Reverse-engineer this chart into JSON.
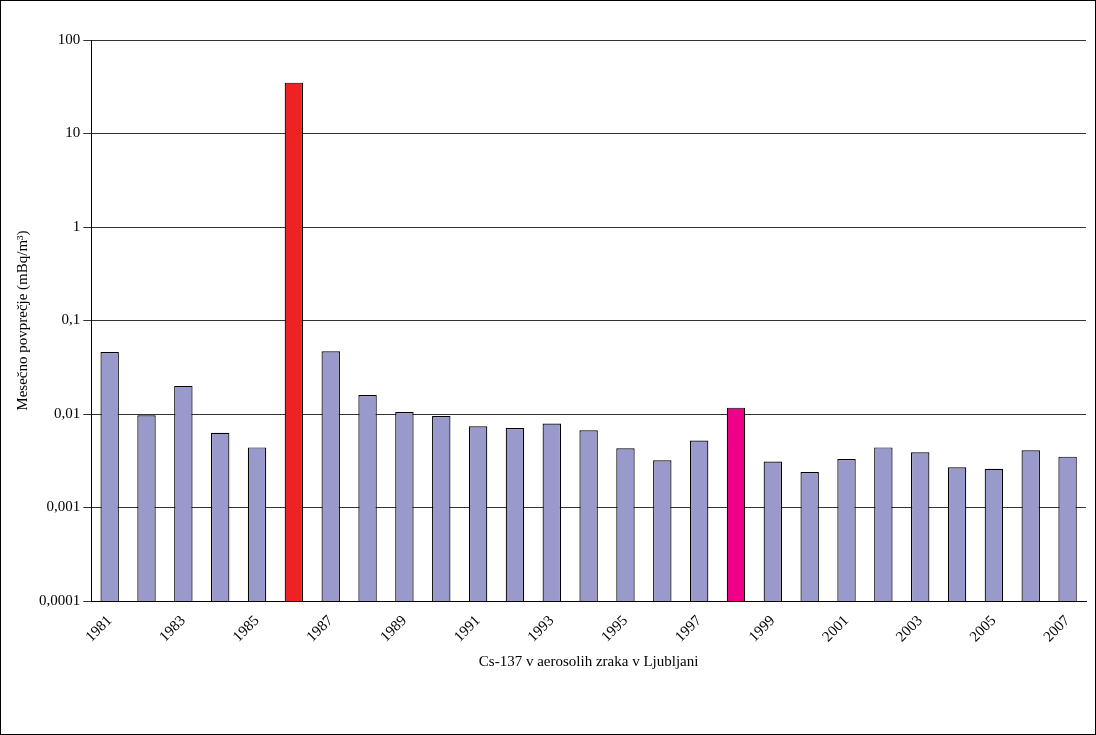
{
  "chart_data": {
    "type": "bar",
    "xlabel": "Cs-137 v aerosolih zraka v Ljubljani",
    "ylabel": "Mesečno povprečje (mBq/m³)",
    "categories": [
      "1981",
      null,
      "1983",
      null,
      "1985",
      null,
      "1987",
      null,
      "1989",
      null,
      "1991",
      null,
      "1993",
      null,
      "1995",
      null,
      "1997",
      null,
      "1999",
      null,
      "2001",
      null,
      "2003",
      null,
      "2005",
      null,
      "2007"
    ],
    "values": [
      0.046,
      0.0097,
      0.02,
      0.0063,
      0.0044,
      35,
      0.047,
      0.016,
      0.0105,
      0.0095,
      0.0074,
      0.0071,
      0.0079,
      0.0067,
      0.0043,
      0.0032,
      0.0052,
      0.0117,
      0.0031,
      0.0024,
      0.0033,
      0.0044,
      0.0039,
      0.0027,
      0.0026,
      0.0041,
      0.0035
    ],
    "colors": [
      "#9999cc",
      "#9999cc",
      "#9999cc",
      "#9999cc",
      "#9999cc",
      "#ee2222",
      "#9999cc",
      "#9999cc",
      "#9999cc",
      "#9999cc",
      "#9999cc",
      "#9999cc",
      "#9999cc",
      "#9999cc",
      "#9999cc",
      "#9999cc",
      "#9999cc",
      "#ee0088",
      "#9999cc",
      "#9999cc",
      "#9999cc",
      "#9999cc",
      "#9999cc",
      "#9999cc",
      "#9999cc",
      "#9999cc",
      "#9999cc"
    ],
    "log": "y",
    "ylim": [
      0.0001,
      100
    ],
    "yticks": [
      {
        "value": 0.0001,
        "label": "0,0001"
      },
      {
        "value": 0.001,
        "label": "0,001"
      },
      {
        "value": 0.01,
        "label": "0,01"
      },
      {
        "value": 0.1,
        "label": "0,1"
      },
      1,
      10,
      100
    ],
    "grid": "y",
    "legend": false
  }
}
